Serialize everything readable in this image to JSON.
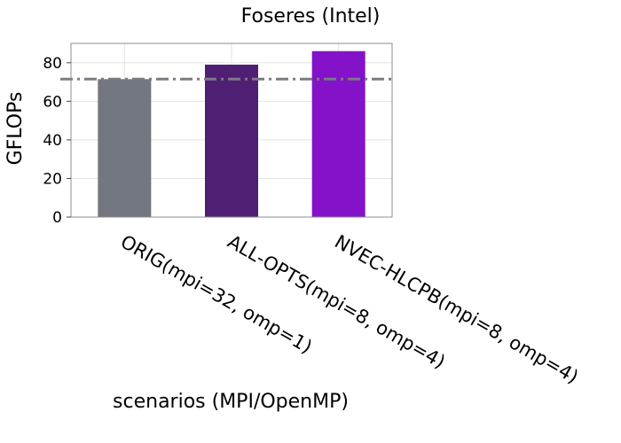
{
  "chart_data": {
    "type": "bar",
    "title": "Foseres (Intel)",
    "xlabel": "scenarios (MPI/OpenMP)",
    "ylabel": "GFLOPs",
    "categories": [
      "ORIG(mpi=32, omp=1)",
      "ALL-OPTS(mpi=8, omp=4)",
      "NVEC-HLCPB(mpi=8, omp=4)"
    ],
    "values": [
      71.5,
      79,
      86
    ],
    "colors": [
      "#737780",
      "#4f1f74",
      "#8312c9"
    ],
    "yticks": [
      0,
      20,
      40,
      60,
      80
    ],
    "ylim": [
      0,
      90
    ],
    "reference_line": {
      "value": 71.5,
      "style": "dash-dot",
      "color": "#7b7b84"
    },
    "grid": true,
    "legend": "none"
  }
}
